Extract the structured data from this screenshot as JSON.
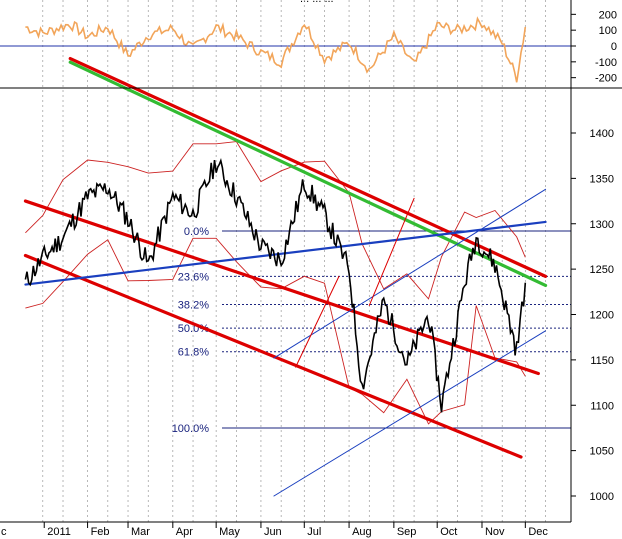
{
  "chart_data": [
    {
      "type": "line",
      "panel": "oscillator",
      "title": "",
      "header_text": "... ... ...",
      "color": "#f2a55a",
      "y_ticks": [
        200,
        100,
        0,
        -100,
        -200
      ],
      "ylim": [
        -240,
        240
      ],
      "zero_line_color": "#2233aa",
      "grid": "vertical dotted",
      "x": [
        "2010-12-20",
        "2011-01-01",
        "2011-01-20",
        "2011-02-01",
        "2011-02-15",
        "2011-03-01",
        "2011-03-15",
        "2011-04-01",
        "2011-04-15",
        "2011-05-01",
        "2011-05-15",
        "2011-06-01",
        "2011-06-15",
        "2011-07-01",
        "2011-07-15",
        "2011-08-01",
        "2011-08-15",
        "2011-09-01",
        "2011-09-15",
        "2011-10-01",
        "2011-10-15",
        "2011-11-01",
        "2011-11-15",
        "2011-11-25",
        "2011-12-01"
      ],
      "values": [
        120,
        80,
        140,
        60,
        120,
        -60,
        70,
        110,
        -20,
        120,
        60,
        -40,
        -100,
        150,
        -80,
        20,
        -150,
        60,
        -120,
        130,
        100,
        150,
        20,
        -200,
        120
      ]
    },
    {
      "type": "line",
      "panel": "price",
      "title": "",
      "series": [
        {
          "name": "",
          "color": "#000000",
          "values": [
            1235,
            1262,
            1285,
            1330,
            1340,
            1305,
            1255,
            1330,
            1310,
            1368,
            1330,
            1275,
            1260,
            1345,
            1310,
            1250,
            1120,
            1215,
            1145,
            1200,
            1100,
            1235,
            1285,
            1255,
            1160,
            1235
          ]
        }
      ],
      "x": [
        "2010-12-20",
        "2011-01-01",
        "2011-01-15",
        "2011-02-01",
        "2011-02-15",
        "2011-03-01",
        "2011-03-15",
        "2011-04-01",
        "2011-04-15",
        "2011-05-01",
        "2011-05-15",
        "2011-06-01",
        "2011-06-15",
        "2011-07-01",
        "2011-07-15",
        "2011-08-01",
        "2011-08-10",
        "2011-08-25",
        "2011-09-10",
        "2011-09-25",
        "2011-10-04",
        "2011-10-20",
        "2011-10-28",
        "2011-11-10",
        "2011-11-25",
        "2011-12-01"
      ],
      "x_tick_labels": [
        "c",
        "2011",
        "Feb",
        "Mar",
        "Apr",
        "May",
        "Jun",
        "Jul",
        "Aug",
        "Sep",
        "Oct",
        "Nov",
        "Dec"
      ],
      "y_ticks": [
        1400,
        1350,
        1300,
        1250,
        1200,
        1150,
        1100,
        1050,
        1000
      ],
      "ylim": [
        975,
        1445
      ],
      "grid": "vertical dotted",
      "fibonacci_levels": [
        {
          "label": "0.0%",
          "value": 1292,
          "style": "solid"
        },
        {
          "label": "23.6%",
          "value": 1242,
          "style": "dotted"
        },
        {
          "label": "38.2%",
          "value": 1211,
          "style": "dotted"
        },
        {
          "label": "50.0%",
          "value": 1185,
          "style": "dotted"
        },
        {
          "label": "61.8%",
          "value": 1159,
          "style": "dotted"
        },
        {
          "label": "100.0%",
          "value": 1075,
          "style": "solid"
        }
      ],
      "trendlines": [
        {
          "color": "#dd0000",
          "from": [
            "2011-01-20",
            1482
          ],
          "to": [
            "2011-12-15",
            1242
          ]
        },
        {
          "color": "#dd0000",
          "from": [
            "2010-12-20",
            1325
          ],
          "to": [
            "2011-12-10",
            1135
          ]
        },
        {
          "color": "#dd0000",
          "from": [
            "2010-12-20",
            1265
          ],
          "to": [
            "2011-11-28",
            1043
          ]
        },
        {
          "color": "#33bb33",
          "from": [
            "2011-01-20",
            1478
          ],
          "to": [
            "2011-12-15",
            1232
          ]
        },
        {
          "color": "#1a3fbf",
          "from": [
            "2010-12-20",
            1233
          ],
          "to": [
            "2011-12-15",
            1302
          ]
        },
        {
          "color": "#1a3fbf",
          "from": [
            "2011-06-10",
            1152
          ],
          "to": [
            "2011-12-15",
            1338
          ]
        },
        {
          "color": "#1a3fbf",
          "from": [
            "2011-06-10",
            1000
          ],
          "to": [
            "2011-12-15",
            1182
          ]
        },
        {
          "color": "#dd0000",
          "from": [
            "2011-06-25",
            1142
          ],
          "to": [
            "2011-07-25",
            1242
          ]
        },
        {
          "color": "#dd0000",
          "from": [
            "2011-08-15",
            1210
          ],
          "to": [
            "2011-09-15",
            1328
          ]
        }
      ],
      "bollinger_color": "#cc2222"
    }
  ]
}
